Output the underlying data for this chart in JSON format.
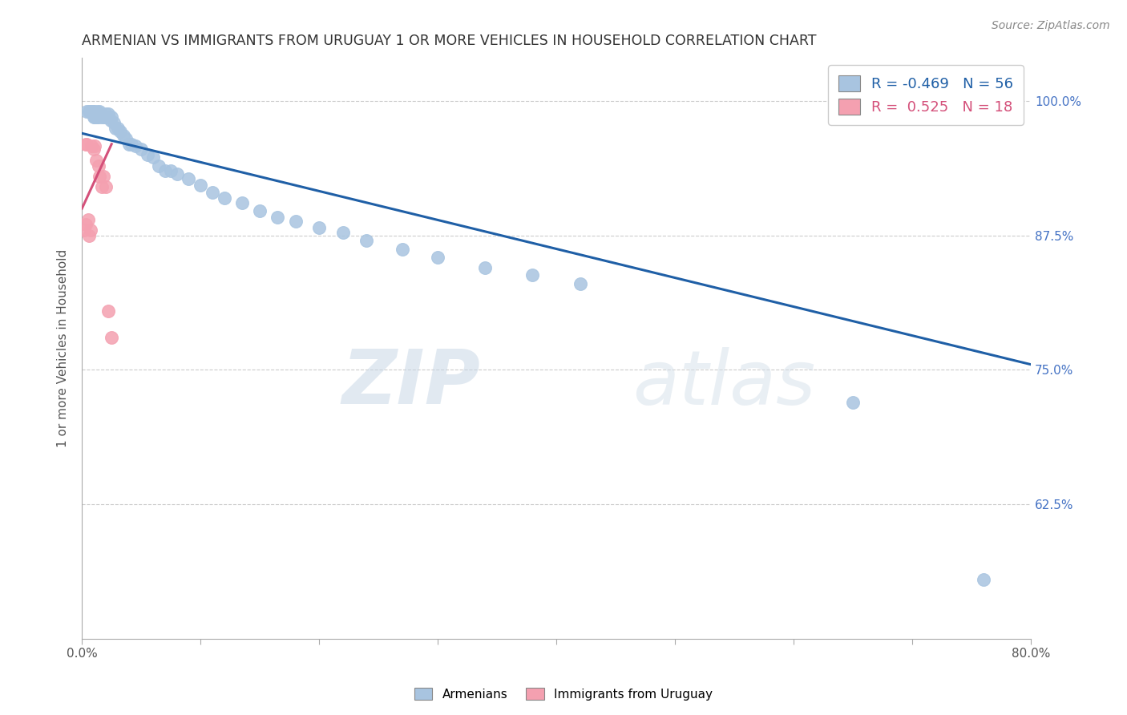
{
  "title": "ARMENIAN VS IMMIGRANTS FROM URUGUAY 1 OR MORE VEHICLES IN HOUSEHOLD CORRELATION CHART",
  "source": "Source: ZipAtlas.com",
  "ylabel": "1 or more Vehicles in Household",
  "xlim": [
    0.0,
    0.8
  ],
  "ylim": [
    0.5,
    1.04
  ],
  "yticks": [
    0.625,
    0.75,
    0.875,
    1.0
  ],
  "ytick_labels": [
    "62.5%",
    "75.0%",
    "87.5%",
    "100.0%"
  ],
  "xticks": [
    0.0,
    0.1,
    0.2,
    0.3,
    0.4,
    0.5,
    0.6,
    0.7,
    0.8
  ],
  "xtick_labels": [
    "0.0%",
    "",
    "",
    "",
    "",
    "",
    "",
    "",
    "80.0%"
  ],
  "legend_armenians_R": "-0.469",
  "legend_armenians_N": "56",
  "legend_uruguay_R": "0.525",
  "legend_uruguay_N": "18",
  "blue_color": "#a8c4e0",
  "blue_line_color": "#1f5fa6",
  "pink_color": "#f4a0b0",
  "pink_line_color": "#d4507a",
  "watermark_zip": "ZIP",
  "watermark_atlas": "atlas",
  "armenians_x": [
    0.004,
    0.006,
    0.007,
    0.008,
    0.009,
    0.01,
    0.01,
    0.011,
    0.012,
    0.013,
    0.013,
    0.014,
    0.015,
    0.016,
    0.017,
    0.018,
    0.019,
    0.02,
    0.021,
    0.022,
    0.024,
    0.025,
    0.027,
    0.028,
    0.03,
    0.032,
    0.035,
    0.037,
    0.04,
    0.042,
    0.045,
    0.05,
    0.055,
    0.06,
    0.065,
    0.07,
    0.075,
    0.08,
    0.09,
    0.1,
    0.11,
    0.12,
    0.135,
    0.15,
    0.165,
    0.18,
    0.2,
    0.22,
    0.24,
    0.27,
    0.3,
    0.34,
    0.38,
    0.42,
    0.65,
    0.76
  ],
  "armenians_y": [
    0.99,
    0.99,
    0.99,
    0.99,
    0.99,
    0.99,
    0.985,
    0.985,
    0.985,
    0.99,
    0.985,
    0.985,
    0.99,
    0.988,
    0.985,
    0.985,
    0.985,
    0.988,
    0.985,
    0.988,
    0.982,
    0.985,
    0.98,
    0.975,
    0.975,
    0.972,
    0.968,
    0.965,
    0.96,
    0.96,
    0.958,
    0.955,
    0.95,
    0.948,
    0.94,
    0.935,
    0.935,
    0.932,
    0.928,
    0.922,
    0.915,
    0.91,
    0.905,
    0.898,
    0.892,
    0.888,
    0.882,
    0.878,
    0.87,
    0.862,
    0.855,
    0.845,
    0.838,
    0.83,
    0.72,
    0.555
  ],
  "uruguay_x": [
    0.002,
    0.003,
    0.003,
    0.004,
    0.005,
    0.006,
    0.007,
    0.008,
    0.01,
    0.011,
    0.012,
    0.014,
    0.015,
    0.017,
    0.018,
    0.02,
    0.022,
    0.025
  ],
  "uruguay_y": [
    0.88,
    0.885,
    0.96,
    0.96,
    0.89,
    0.875,
    0.88,
    0.958,
    0.955,
    0.958,
    0.945,
    0.94,
    0.93,
    0.92,
    0.93,
    0.92,
    0.805,
    0.78
  ],
  "blue_trend_x0": 0.0,
  "blue_trend_y0": 0.97,
  "blue_trend_x1": 0.8,
  "blue_trend_y1": 0.755,
  "pink_trend_x0": 0.0,
  "pink_trend_y0": 0.9,
  "pink_trend_x1": 0.025,
  "pink_trend_y1": 0.96
}
